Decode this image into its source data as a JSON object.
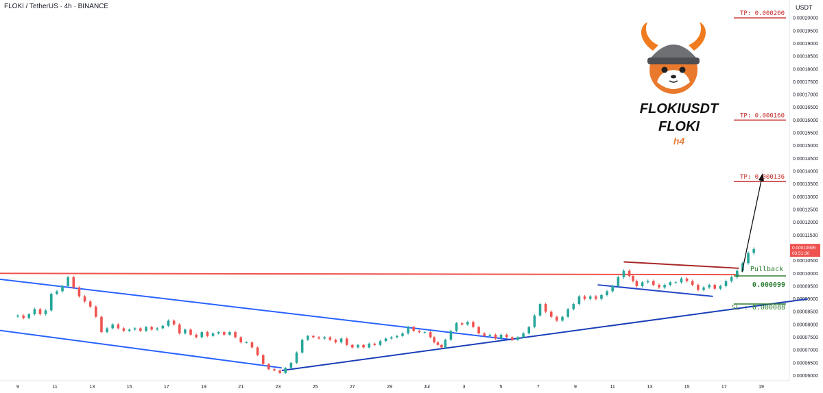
{
  "header": {
    "title": "FLOKI / TetherUS · 4h · BINANCE"
  },
  "axis_unit": "USDT",
  "symbol": {
    "line1": "FLOKIUSDT",
    "line2": "FLOKI",
    "timeframe": "h4"
  },
  "price_badge": {
    "price": "0.00010995",
    "countdown": "03:51:30"
  },
  "levels": {
    "tp3": {
      "label": "TP: 0.000200",
      "value": 0.0002
    },
    "tp2": {
      "label": "TP: 0.000160",
      "value": 0.00016
    },
    "tp1": {
      "label": "TP: 0.000136",
      "value": 0.000136
    },
    "pullback": {
      "label": "Pullback",
      "value_label": "0.000099",
      "value": 9.9e-05
    },
    "sl": {
      "label": "SL : 0.000088",
      "value": 8.8e-05
    }
  },
  "colors": {
    "up": "#26a69a",
    "down": "#ef5350",
    "tp": "#c62828",
    "green": "#2e7d32",
    "channel": "#2962ff",
    "resistance": "#ef5350"
  },
  "chart_data": {
    "type": "candlestick",
    "ylim": [
      5.8e-05,
      0.000207
    ],
    "y_ticks": [
      "0.00020000",
      "0.00019500",
      "0.00019000",
      "0.00018500",
      "0.00018000",
      "0.00017500",
      "0.00017000",
      "0.00016500",
      "0.00016000",
      "0.00015500",
      "0.00015000",
      "0.00014500",
      "0.00014000",
      "0.00013500",
      "0.00013000",
      "0.00012500",
      "0.00012000",
      "0.00011500",
      "0.00011000",
      "0.00010500",
      "0.00010000",
      "0.00009500",
      "0.00009000",
      "0.00008500",
      "0.00008000",
      "0.00007500",
      "0.00007000",
      "0.00006500",
      "0.00006000"
    ],
    "x_ticks": [
      "9",
      "11",
      "13",
      "15",
      "17",
      "19",
      "21",
      "23",
      "25",
      "27",
      "29",
      "Jul",
      "3",
      "5",
      "7",
      "9",
      "11",
      "13",
      "15",
      "17",
      "19"
    ],
    "x_ticks_period": "June–July",
    "candles": [
      [
        0,
        8.35e-05
      ],
      [
        0.3,
        8.25e-05
      ],
      [
        0.6,
        8.4e-05
      ],
      [
        0.9,
        8.6e-05
      ],
      [
        1.2,
        8.4e-05
      ],
      [
        1.5,
        8.55e-05
      ],
      [
        1.8,
        9.2e-05
      ],
      [
        2.1,
        9.3e-05
      ],
      [
        2.4,
        9.5e-05
      ],
      [
        2.7,
        9.85e-05
      ],
      [
        3.0,
        9.45e-05
      ],
      [
        3.3,
        9.1e-05
      ],
      [
        3.6,
        8.9e-05
      ],
      [
        3.9,
        8.7e-05
      ],
      [
        4.2,
        8.3e-05
      ],
      [
        4.5,
        7.7e-05
      ],
      [
        4.8,
        7.85e-05
      ],
      [
        5.1,
        8e-05
      ],
      [
        5.4,
        7.85e-05
      ],
      [
        5.7,
        7.75e-05
      ],
      [
        6.0,
        7.8e-05
      ],
      [
        6.3,
        7.85e-05
      ],
      [
        6.6,
        7.75e-05
      ],
      [
        6.9,
        7.9e-05
      ],
      [
        7.2,
        7.8e-05
      ],
      [
        7.5,
        7.85e-05
      ],
      [
        7.8,
        7.95e-05
      ],
      [
        8.1,
        8.15e-05
      ],
      [
        8.4,
        8e-05
      ],
      [
        8.7,
        7.65e-05
      ],
      [
        9.0,
        7.8e-05
      ],
      [
        9.3,
        7.6e-05
      ],
      [
        9.6,
        7.5e-05
      ],
      [
        9.9,
        7.7e-05
      ],
      [
        10.2,
        7.55e-05
      ],
      [
        10.5,
        7.65e-05
      ],
      [
        10.8,
        7.7e-05
      ],
      [
        11.1,
        7.6e-05
      ],
      [
        11.4,
        7.7e-05
      ],
      [
        11.7,
        7.5e-05
      ],
      [
        12.0,
        7.3e-05
      ],
      [
        12.3,
        7.3e-05
      ],
      [
        12.6,
        7.1e-05
      ],
      [
        12.9,
        6.8e-05
      ],
      [
        13.2,
        6.45e-05
      ],
      [
        13.5,
        6.25e-05
      ],
      [
        13.8,
        6.2e-05
      ],
      [
        14.1,
        6.1e-05
      ],
      [
        14.4,
        6.3e-05
      ],
      [
        14.7,
        6.5e-05
      ],
      [
        15.0,
        6.9e-05
      ],
      [
        15.3,
        7.4e-05
      ],
      [
        15.6,
        7.55e-05
      ],
      [
        15.9,
        7.5e-05
      ],
      [
        16.2,
        7.45e-05
      ],
      [
        16.5,
        7.5e-05
      ],
      [
        16.8,
        7.4e-05
      ],
      [
        17.1,
        7.3e-05
      ],
      [
        17.4,
        7.45e-05
      ],
      [
        17.7,
        7.2e-05
      ],
      [
        18.0,
        7.1e-05
      ],
      [
        18.3,
        7.2e-05
      ],
      [
        18.6,
        7.1e-05
      ],
      [
        18.9,
        7.25e-05
      ],
      [
        19.2,
        7.2e-05
      ],
      [
        19.5,
        7.35e-05
      ],
      [
        19.8,
        7.45e-05
      ],
      [
        20.1,
        7.5e-05
      ],
      [
        20.4,
        7.55e-05
      ],
      [
        20.7,
        7.65e-05
      ],
      [
        21.0,
        7.9e-05
      ],
      [
        21.3,
        7.75e-05
      ],
      [
        21.6,
        7.7e-05
      ],
      [
        21.9,
        7.7e-05
      ],
      [
        22.2,
        7.5e-05
      ],
      [
        22.4,
        7.3e-05
      ],
      [
        22.6,
        7.2e-05
      ],
      [
        22.8,
        7.1e-05
      ],
      [
        23.0,
        7.4e-05
      ],
      [
        23.3,
        7.75e-05
      ],
      [
        23.6,
        8.05e-05
      ],
      [
        23.9,
        8e-05
      ],
      [
        24.2,
        8.1e-05
      ],
      [
        24.5,
        7.9e-05
      ],
      [
        24.8,
        7.65e-05
      ],
      [
        25.1,
        7.55e-05
      ],
      [
        25.4,
        7.6e-05
      ],
      [
        25.7,
        7.45e-05
      ],
      [
        26.0,
        7.6e-05
      ],
      [
        26.3,
        7.5e-05
      ],
      [
        26.6,
        7.4e-05
      ],
      [
        26.9,
        7.5e-05
      ],
      [
        27.2,
        7.65e-05
      ],
      [
        27.5,
        7.9e-05
      ],
      [
        27.8,
        8.35e-05
      ],
      [
        28.1,
        8.8e-05
      ],
      [
        28.4,
        8.5e-05
      ],
      [
        28.7,
        8.3e-05
      ],
      [
        29.0,
        8.15e-05
      ],
      [
        29.3,
        8.3e-05
      ],
      [
        29.6,
        8.6e-05
      ],
      [
        29.9,
        8.8e-05
      ],
      [
        30.2,
        9.1e-05
      ],
      [
        30.5,
        9e-05
      ],
      [
        30.8,
        9.1e-05
      ],
      [
        31.1,
        9e-05
      ],
      [
        31.4,
        9.15e-05
      ],
      [
        31.7,
        9.3e-05
      ],
      [
        32.0,
        9.5e-05
      ],
      [
        32.3,
        9.85e-05
      ],
      [
        32.6,
        0.000101
      ],
      [
        32.9,
        9.9e-05
      ],
      [
        33.1,
        9.7e-05
      ],
      [
        33.3,
        9.5e-05
      ],
      [
        33.6,
        9.65e-05
      ],
      [
        33.9,
        9.7e-05
      ],
      [
        34.2,
        9.55e-05
      ],
      [
        34.5,
        9.45e-05
      ],
      [
        34.8,
        9.55e-05
      ],
      [
        35.1,
        9.65e-05
      ],
      [
        35.4,
        9.65e-05
      ],
      [
        35.7,
        9.8e-05
      ],
      [
        36.0,
        9.7e-05
      ],
      [
        36.3,
        9.55e-05
      ],
      [
        36.6,
        9.35e-05
      ],
      [
        36.9,
        9.45e-05
      ],
      [
        37.2,
        9.55e-05
      ],
      [
        37.5,
        9.4e-05
      ],
      [
        37.8,
        9.5e-05
      ],
      [
        38.1,
        9.7e-05
      ],
      [
        38.4,
        9.85e-05
      ],
      [
        38.7,
        0.000101
      ],
      [
        39.0,
        0.000104
      ],
      [
        39.3,
        0.000108
      ],
      [
        39.6,
        0.0001095
      ]
    ],
    "drawn_lines": [
      {
        "name": "resistance-red",
        "from": [
          -1.3,
          0.0001
        ],
        "to": [
          38.8,
          9.95e-05
        ]
      },
      {
        "name": "channel-upper",
        "from": [
          -1.3,
          9.8e-05
        ],
        "to": [
          26.6,
          7.4e-05
        ]
      },
      {
        "name": "channel-lower",
        "from": [
          -1.3,
          7.8e-05
        ],
        "to": [
          14.2,
          6.3e-05
        ]
      },
      {
        "name": "uptrend-support",
        "from": [
          14.2,
          6.2e-05
        ],
        "to": [
          42.5,
          9e-05
        ]
      },
      {
        "name": "flag-top",
        "from": [
          32.6,
          0.0001045
        ],
        "to": [
          38.8,
          0.000102
        ]
      },
      {
        "name": "flag-bottom",
        "from": [
          31.2,
          9.55e-05
        ],
        "to": [
          37.4,
          9.1e-05
        ]
      }
    ]
  }
}
